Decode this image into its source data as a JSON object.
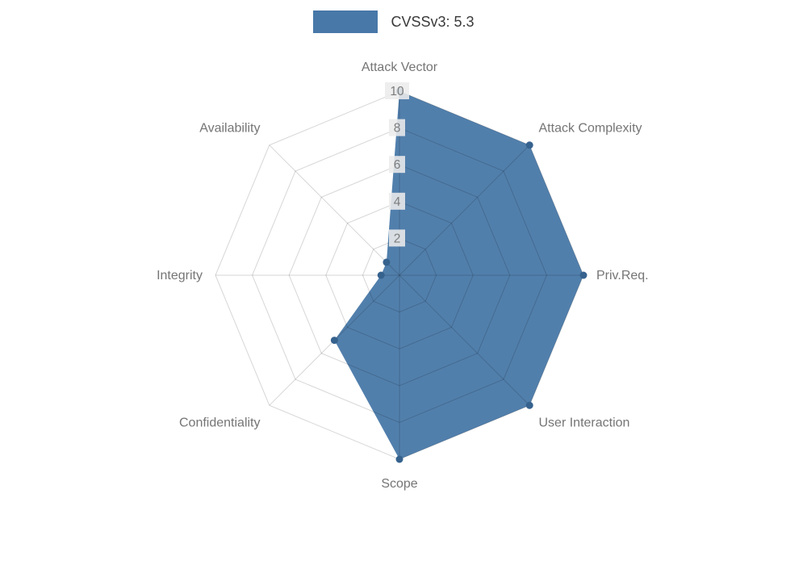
{
  "legend": {
    "label": "CVSSv3: 5.3",
    "swatch_color": "#4878a8"
  },
  "chart_data": {
    "type": "radar",
    "title": "CVSSv3: 5.3",
    "score": "5.3",
    "categories": [
      "Attack Vector",
      "Attack Complexity",
      "Priv.Req.",
      "User Interaction",
      "Scope",
      "Confidentiality",
      "Integrity",
      "Availability"
    ],
    "series": [
      {
        "name": "CVSSv3: 5.3",
        "values": [
          10,
          10,
          10,
          10,
          10,
          5,
          1,
          1
        ]
      }
    ],
    "radial_ticks": [
      2,
      4,
      6,
      8,
      10
    ],
    "rlim": [
      0,
      10
    ],
    "grid": true,
    "legend_position": "top",
    "fill_color": "#4878a8",
    "marker_color": "#36628e",
    "grid_color": "rgba(0,0,0,0.16)",
    "axis_label_color": "#757575",
    "tick_label_color": "#7d7d7d",
    "tick_box_color": "#ececec"
  }
}
